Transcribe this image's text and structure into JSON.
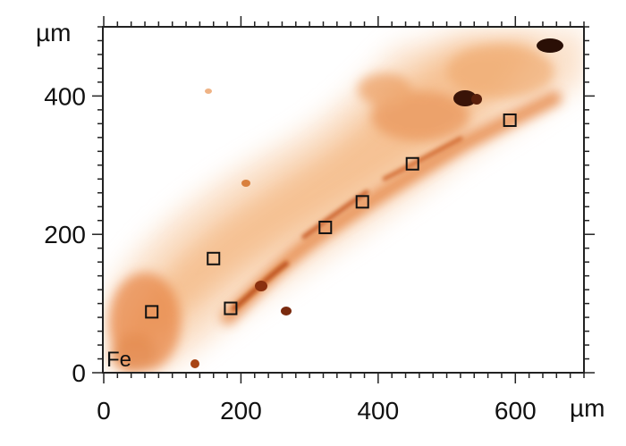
{
  "chart_data": {
    "type": "heatmap",
    "title": "",
    "element_label": "Fe",
    "xlabel": "µm",
    "ylabel": "µm",
    "xlim": [
      0,
      700
    ],
    "ylim": [
      0,
      500
    ],
    "x_ticks": [
      0,
      200,
      400,
      600
    ],
    "y_ticks": [
      0,
      200,
      400
    ],
    "grid": false,
    "colormap": {
      "low": "#ffffff",
      "mid": "#f3b27a",
      "high": "#c04a10",
      "max": "#3a1408"
    },
    "markers": [
      {
        "x": 70,
        "y": 88
      },
      {
        "x": 160,
        "y": 165
      },
      {
        "x": 185,
        "y": 93
      },
      {
        "x": 323,
        "y": 210
      },
      {
        "x": 377,
        "y": 247
      },
      {
        "x": 450,
        "y": 302
      },
      {
        "x": 592,
        "y": 365
      }
    ]
  }
}
